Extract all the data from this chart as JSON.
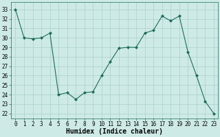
{
  "x": [
    0,
    1,
    2,
    3,
    4,
    5,
    6,
    7,
    8,
    9,
    10,
    11,
    12,
    13,
    14,
    15,
    16,
    17,
    18,
    19,
    20,
    21,
    22,
    23
  ],
  "y": [
    33,
    30,
    29.9,
    30,
    30.5,
    24,
    24.2,
    23.5,
    24.2,
    24.3,
    26,
    27.5,
    28.9,
    29,
    29,
    30.5,
    30.8,
    32.3,
    31.8,
    32.3,
    28.5,
    26,
    23.3,
    22
  ],
  "line_color": "#1a6b5a",
  "marker": "D",
  "marker_size": 2,
  "bg_color": "#ceeae6",
  "grid_color": "#aed4ce",
  "xlabel": "Humidex (Indice chaleur)",
  "ylabel_ticks": [
    22,
    23,
    24,
    25,
    26,
    27,
    28,
    29,
    30,
    31,
    32,
    33
  ],
  "ylim": [
    21.5,
    33.8
  ],
  "xlim": [
    -0.5,
    23.5
  ],
  "tick_fontsize": 5.5,
  "xlabel_fontsize": 7
}
